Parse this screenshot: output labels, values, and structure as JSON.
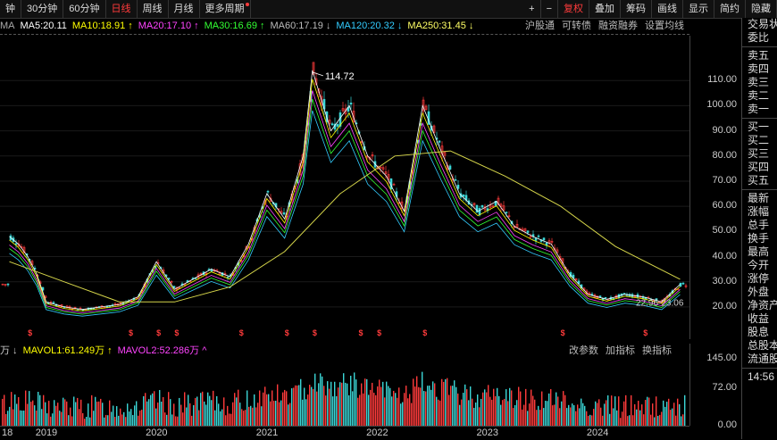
{
  "toolbar": {
    "left_items": [
      {
        "label": "钟",
        "active": false
      },
      {
        "label": "30分钟",
        "active": false
      },
      {
        "label": "60分钟",
        "active": false
      },
      {
        "label": "日线",
        "active": true
      },
      {
        "label": "周线",
        "active": false
      },
      {
        "label": "月线",
        "active": false
      },
      {
        "label": "更多周期",
        "active": false
      }
    ],
    "right_items": [
      {
        "label": "+",
        "red": false
      },
      {
        "label": "−",
        "red": false
      },
      {
        "label": "复权",
        "red": true
      },
      {
        "label": "叠加",
        "red": false
      },
      {
        "label": "筹码",
        "red": false
      },
      {
        "label": "画线",
        "red": false
      },
      {
        "label": "显示",
        "red": false
      },
      {
        "label": "简约",
        "red": false
      },
      {
        "label": "隐藏",
        "red": false
      }
    ]
  },
  "ma_legend": {
    "prefix": "MA",
    "items": [
      {
        "label": "MA5:20.11",
        "color": "#ffffff"
      },
      {
        "label": "MA10:18.91 ↑",
        "color": "#ffff00"
      },
      {
        "label": "MA20:17.10 ↑",
        "color": "#ff44ff"
      },
      {
        "label": "MA30:16.69 ↑",
        "color": "#33ff33"
      },
      {
        "label": "MA60:17.19 ↓",
        "color": "#bbbbbb"
      },
      {
        "label": "MA120:20.32 ↓",
        "color": "#33ccff"
      },
      {
        "label": "MA250:31.45 ↓",
        "color": "#ffff66"
      }
    ]
  },
  "chart_links": [
    "沪股通",
    "可转债",
    "融资融券",
    "设置均线"
  ],
  "vol_legend": {
    "unit": "万 ↓",
    "items": [
      {
        "label": "MAVOL1:61.249万 ↑",
        "color": "#ffff00"
      },
      {
        "label": "MAVOL2:52.286万 ^",
        "color": "#ff44ff"
      }
    ]
  },
  "vol_links": [
    "改参数",
    "加指标",
    "换指标"
  ],
  "chart_data": {
    "type": "candlestick",
    "peak_label": "114.72",
    "recent_labels": [
      "22.96-23.06"
    ],
    "price_ticks": [
      "110.00",
      "100.00",
      "90.00",
      "80.00",
      "70.00",
      "60.00",
      "50.00",
      "40.00",
      "30.00",
      "20.00"
    ],
    "vol_ticks": [
      "145.00",
      "72.00",
      "0.00"
    ],
    "x_ticks": [
      "18",
      "2019",
      "2020",
      "2021",
      "2022",
      "2023",
      "2024"
    ],
    "ylim": [
      15,
      120
    ],
    "close_series": [
      {
        "x": "2018-09",
        "y": 48
      },
      {
        "x": "2018-10",
        "y": 45
      },
      {
        "x": "2018-11",
        "y": 40
      },
      {
        "x": "2018-12",
        "y": 33
      },
      {
        "x": "2019-01",
        "y": 22
      },
      {
        "x": "2019-03",
        "y": 20
      },
      {
        "x": "2019-05",
        "y": 19
      },
      {
        "x": "2019-07",
        "y": 20
      },
      {
        "x": "2019-09",
        "y": 21
      },
      {
        "x": "2019-11",
        "y": 24
      },
      {
        "x": "2020-01",
        "y": 38
      },
      {
        "x": "2020-03",
        "y": 27
      },
      {
        "x": "2020-05",
        "y": 31
      },
      {
        "x": "2020-07",
        "y": 35
      },
      {
        "x": "2020-09",
        "y": 32
      },
      {
        "x": "2020-11",
        "y": 45
      },
      {
        "x": "2021-01",
        "y": 65
      },
      {
        "x": "2021-03",
        "y": 55
      },
      {
        "x": "2021-05",
        "y": 80
      },
      {
        "x": "2021-06",
        "y": 114
      },
      {
        "x": "2021-08",
        "y": 90
      },
      {
        "x": "2021-10",
        "y": 100
      },
      {
        "x": "2021-12",
        "y": 80
      },
      {
        "x": "2022-02",
        "y": 72
      },
      {
        "x": "2022-04",
        "y": 58
      },
      {
        "x": "2022-06",
        "y": 100
      },
      {
        "x": "2022-08",
        "y": 82
      },
      {
        "x": "2022-10",
        "y": 65
      },
      {
        "x": "2022-12",
        "y": 58
      },
      {
        "x": "2023-02",
        "y": 62
      },
      {
        "x": "2023-04",
        "y": 52
      },
      {
        "x": "2023-06",
        "y": 48
      },
      {
        "x": "2023-08",
        "y": 45
      },
      {
        "x": "2023-10",
        "y": 33
      },
      {
        "x": "2023-12",
        "y": 25
      },
      {
        "x": "2024-02",
        "y": 23
      },
      {
        "x": "2024-04",
        "y": 25
      },
      {
        "x": "2024-06",
        "y": 24
      },
      {
        "x": "2024-08",
        "y": 22
      },
      {
        "x": "2024-10",
        "y": 29
      }
    ],
    "ma250_series": [
      {
        "x": "2018-09",
        "y": 38
      },
      {
        "x": "2019-03",
        "y": 30
      },
      {
        "x": "2019-09",
        "y": 22
      },
      {
        "x": "2020-03",
        "y": 22
      },
      {
        "x": "2020-09",
        "y": 28
      },
      {
        "x": "2021-03",
        "y": 42
      },
      {
        "x": "2021-09",
        "y": 65
      },
      {
        "x": "2022-03",
        "y": 80
      },
      {
        "x": "2022-09",
        "y": 82
      },
      {
        "x": "2023-03",
        "y": 72
      },
      {
        "x": "2023-09",
        "y": 60
      },
      {
        "x": "2024-03",
        "y": 44
      },
      {
        "x": "2024-10",
        "y": 31
      }
    ]
  },
  "side_panel": {
    "rows": [
      {
        "label": "交易状",
        "cls": ""
      },
      {
        "label": "委比",
        "cls": ""
      },
      {
        "label": "",
        "cls": "sep"
      },
      {
        "label": "卖五",
        "cls": ""
      },
      {
        "label": "卖四",
        "cls": ""
      },
      {
        "label": "卖三",
        "cls": ""
      },
      {
        "label": "卖二",
        "cls": ""
      },
      {
        "label": "卖一",
        "cls": ""
      },
      {
        "label": "",
        "cls": "sep"
      },
      {
        "label": "买一",
        "cls": ""
      },
      {
        "label": "买二",
        "cls": ""
      },
      {
        "label": "买三",
        "cls": ""
      },
      {
        "label": "买四",
        "cls": ""
      },
      {
        "label": "买五",
        "cls": ""
      },
      {
        "label": "",
        "cls": "sep"
      },
      {
        "label": "最新",
        "cls": ""
      },
      {
        "label": "涨幅",
        "cls": ""
      },
      {
        "label": "总手",
        "cls": ""
      },
      {
        "label": "换手",
        "cls": ""
      },
      {
        "label": "最高",
        "cls": ""
      },
      {
        "label": "今开",
        "cls": ""
      },
      {
        "label": "涨停",
        "cls": ""
      },
      {
        "label": "外盘",
        "cls": ""
      },
      {
        "label": "净资产",
        "cls": ""
      },
      {
        "label": "收益",
        "cls": ""
      },
      {
        "label": "股息",
        "cls": ""
      },
      {
        "label": "总股本",
        "cls": ""
      },
      {
        "label": "流通股",
        "cls": ""
      },
      {
        "label": "",
        "cls": "sep"
      },
      {
        "label": "14:56",
        "cls": ""
      }
    ]
  }
}
